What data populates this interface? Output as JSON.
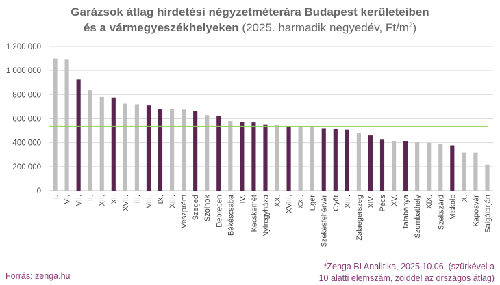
{
  "chart_data": {
    "type": "bar",
    "title_bold_1": "Garázsok átlag hirdetési négyzetméterára Budapest kerületeiben",
    "title_bold_2": "és a vármegyeszékhelyeken",
    "title_normal": "(2025. harmadik negyedév, Ft/m",
    "title_sup": "2",
    "title_end": ")",
    "ylim": [
      0,
      1200000
    ],
    "yticks": [
      "0",
      "200 000",
      "400 000",
      "600 000",
      "800 000",
      "1 000 000",
      "1 200 000"
    ],
    "ytick_values": [
      0,
      200000,
      400000,
      600000,
      800000,
      1000000,
      1200000
    ],
    "categories": [
      "I.",
      "VI.",
      "VII.",
      "II.",
      "XII.",
      "XI.",
      "XVII.",
      "III.",
      "VIII.",
      "IX.",
      "XIII.",
      "Veszprém",
      "Szeged",
      "Szolnok",
      "Debrecen",
      "Békéscsaba",
      "IV.",
      "Kecskemét",
      "Nyíregyháza",
      "XX.",
      "XVIII.",
      "XXI.",
      "Eger",
      "Székesfehérvár",
      "Győr",
      "XIII.",
      "Zalaegerszeg",
      "XIV.",
      "Pécs",
      "XV.",
      "Tatabánya",
      "Szombathely",
      "XIX.",
      "Szekszárd",
      "Miskolc",
      "X.",
      "Kaposvár",
      "Salgótarján"
    ],
    "values": [
      1100000,
      1090000,
      925000,
      835000,
      780000,
      775000,
      725000,
      720000,
      710000,
      680000,
      678000,
      675000,
      660000,
      630000,
      620000,
      580000,
      573000,
      568000,
      548000,
      545000,
      540000,
      535000,
      530000,
      515000,
      512000,
      508000,
      478000,
      460000,
      425000,
      415000,
      410000,
      403000,
      400000,
      390000,
      378000,
      315000,
      315000,
      218000
    ],
    "bar_colors": [
      "gray",
      "gray",
      "purple",
      "gray",
      "gray",
      "purple",
      "gray",
      "gray",
      "purple",
      "purple",
      "gray",
      "gray",
      "purple",
      "gray",
      "purple",
      "gray",
      "purple",
      "purple",
      "purple",
      "gray",
      "purple",
      "gray",
      "gray",
      "purple",
      "purple",
      "purple",
      "gray",
      "purple",
      "purple",
      "gray",
      "purple",
      "gray",
      "gray",
      "gray",
      "purple",
      "gray",
      "gray",
      "gray"
    ],
    "national_average": 535000,
    "colors": {
      "gray": "#bfbfbf",
      "purple": "#5a2550",
      "average_line": "#92d050"
    },
    "grid": true
  },
  "footer": {
    "source": "Forrás: zenga.hu",
    "note_line1": "*Zenga BI Analitika, 2025.10.06. (szürkével a",
    "note_line2": "10 alatti elemszám, zölddel az országos átlag)"
  }
}
